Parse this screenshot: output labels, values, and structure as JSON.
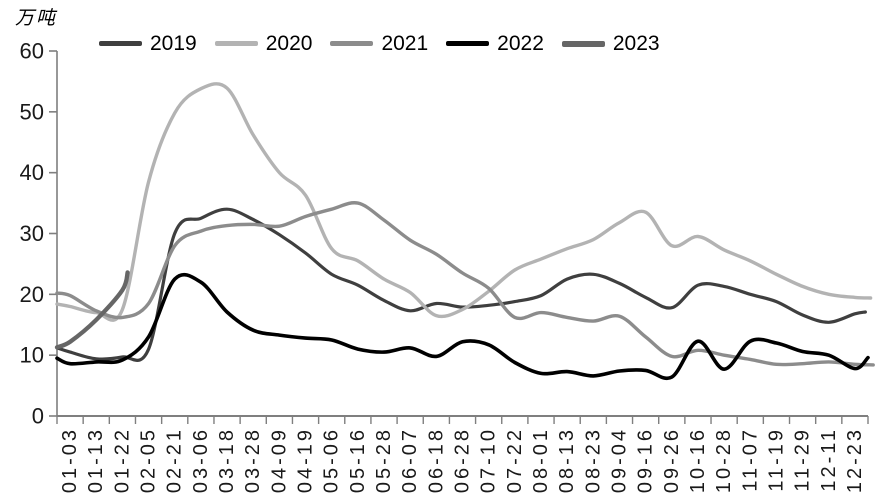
{
  "chart_data": {
    "type": "line",
    "unit_label": "万吨",
    "categories": [
      "01-03",
      "01-13",
      "01-22",
      "02-05",
      "02-21",
      "03-06",
      "03-18",
      "03-28",
      "04-09",
      "04-19",
      "05-06",
      "05-16",
      "05-28",
      "06-07",
      "06-18",
      "06-28",
      "07-10",
      "07-22",
      "08-01",
      "08-13",
      "08-23",
      "09-04",
      "09-16",
      "09-26",
      "10-16",
      "10-28",
      "11-07",
      "11-19",
      "11-29",
      "12-11",
      "12-23"
    ],
    "ylim": [
      0,
      60
    ],
    "ytick_step": 10,
    "yticks": [
      0,
      10,
      20,
      30,
      40,
      50,
      60
    ],
    "grid": false,
    "legend_position": "top",
    "axis_color": "#7f7f7f",
    "tick_label_color": "#1a1a1a",
    "series": [
      {
        "name": "2019",
        "color": "#3f3f3f",
        "width": 3.2,
        "x": [
          -0.5,
          0,
          1,
          2,
          3,
          4,
          5,
          6,
          7,
          8,
          9,
          10,
          11,
          12,
          13,
          14,
          15,
          16,
          17,
          18,
          19,
          20,
          21,
          22,
          23,
          24,
          25,
          26,
          27,
          28,
          29,
          30,
          30.4
        ],
        "values": [
          11.2,
          10.5,
          9.4,
          9.7,
          11.0,
          30.0,
          32.5,
          34.0,
          32.3,
          29.8,
          26.8,
          23.3,
          21.5,
          19.0,
          17.3,
          18.5,
          17.9,
          18.2,
          18.8,
          19.8,
          22.5,
          23.3,
          21.8,
          19.5,
          17.8,
          21.5,
          21.3,
          20.0,
          18.8,
          16.6,
          15.4,
          16.8,
          17.1
        ]
      },
      {
        "name": "2020",
        "color": "#b3b3b3",
        "width": 3.4,
        "x": [
          -0.5,
          0,
          1,
          2,
          3,
          4,
          5,
          6,
          7,
          8,
          9,
          10,
          11,
          12,
          13,
          14,
          15,
          16,
          17,
          18,
          19,
          20,
          21,
          22,
          23,
          24,
          25,
          26,
          27,
          28,
          29,
          30,
          30.6
        ],
        "values": [
          18.4,
          18.0,
          17.0,
          17.5,
          38.5,
          49.8,
          53.8,
          53.9,
          46.2,
          40.0,
          36.3,
          27.5,
          25.5,
          22.5,
          20.3,
          16.5,
          17.5,
          20.5,
          24.0,
          25.8,
          27.5,
          29.0,
          31.8,
          33.5,
          28.0,
          29.5,
          27.3,
          25.5,
          23.3,
          21.3,
          20.0,
          19.5,
          19.4
        ]
      },
      {
        "name": "2021",
        "color": "#8c8c8c",
        "width": 3.4,
        "x": [
          -0.5,
          0,
          1,
          2,
          3,
          4,
          5,
          6,
          7,
          8,
          9,
          10,
          11,
          12,
          13,
          14,
          15,
          16,
          17,
          18,
          19,
          20,
          21,
          22,
          23,
          24,
          25,
          26,
          27,
          28,
          29,
          30,
          30.7
        ],
        "values": [
          20.2,
          19.8,
          17.3,
          16.2,
          18.5,
          28.0,
          30.4,
          31.3,
          31.5,
          31.2,
          32.8,
          34.0,
          35.0,
          32.2,
          28.9,
          26.6,
          23.5,
          21.0,
          16.2,
          17.0,
          16.2,
          15.6,
          16.4,
          13.0,
          9.8,
          10.8,
          10.0,
          9.3,
          8.5,
          8.6,
          8.9,
          8.5,
          8.4
        ]
      },
      {
        "name": "2022",
        "color": "#000000",
        "width": 3.6,
        "x": [
          -0.5,
          0,
          1,
          2,
          3,
          4,
          5,
          6,
          7,
          8,
          9,
          10,
          11,
          12,
          13,
          14,
          15,
          16,
          17,
          18,
          19,
          20,
          21,
          22,
          23,
          24,
          25,
          26,
          27,
          28,
          29,
          30,
          30.5
        ],
        "values": [
          9.5,
          8.6,
          8.9,
          9.2,
          13.0,
          22.5,
          22.0,
          17.1,
          14.1,
          13.3,
          12.8,
          12.5,
          11.0,
          10.5,
          11.2,
          9.8,
          12.2,
          11.7,
          8.8,
          7.0,
          7.3,
          6.6,
          7.4,
          7.5,
          6.4,
          12.3,
          7.7,
          12.3,
          12.0,
          10.6,
          10.0,
          7.8,
          9.6
        ]
      },
      {
        "name": "2023",
        "color": "#666666",
        "width": 4.3,
        "x": [
          -0.5,
          0,
          1,
          2,
          2.2
        ],
        "values": [
          11.3,
          12.2,
          15.8,
          20.7,
          23.6
        ]
      }
    ]
  }
}
